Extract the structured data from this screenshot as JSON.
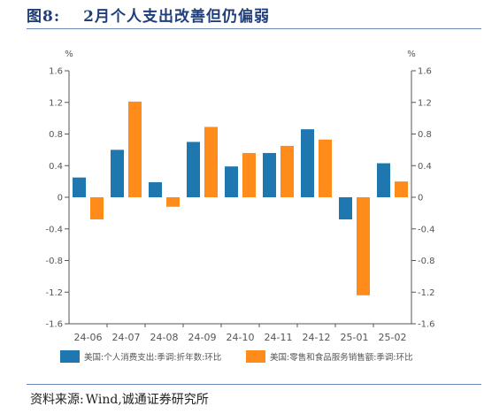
{
  "header": {
    "figure_label": "图8:",
    "title": "2月个人支出改善但仍偏弱"
  },
  "source": {
    "label": "资料来源:",
    "text": "Wind,诚通证券研究所"
  },
  "chart_data": {
    "type": "bar",
    "categories": [
      "24-06",
      "24-07",
      "24-08",
      "24-09",
      "24-10",
      "24-11",
      "24-12",
      "25-01",
      "25-02"
    ],
    "series": [
      {
        "name": "美国:个人消费支出:季调:折年数:环比",
        "color": "#1f77b0",
        "values": [
          0.25,
          0.6,
          0.19,
          0.7,
          0.39,
          0.56,
          0.86,
          -0.28,
          0.43
        ]
      },
      {
        "name": "美国:零售和食品服务销售额:季调:环比",
        "color": "#ff8c1a",
        "values": [
          -0.28,
          1.21,
          -0.12,
          0.89,
          0.56,
          0.65,
          0.73,
          -1.24,
          0.2
        ]
      }
    ],
    "left_axis_unit": "%",
    "right_axis_unit": "%",
    "yticks": [
      "1.6",
      "1.2",
      "0.8",
      "0.4",
      "0",
      "-0.4",
      "-0.8",
      "-1.2",
      "-1.6"
    ],
    "ylim": [
      -1.6,
      1.6
    ],
    "grid": false,
    "legend_position": "bottom"
  }
}
